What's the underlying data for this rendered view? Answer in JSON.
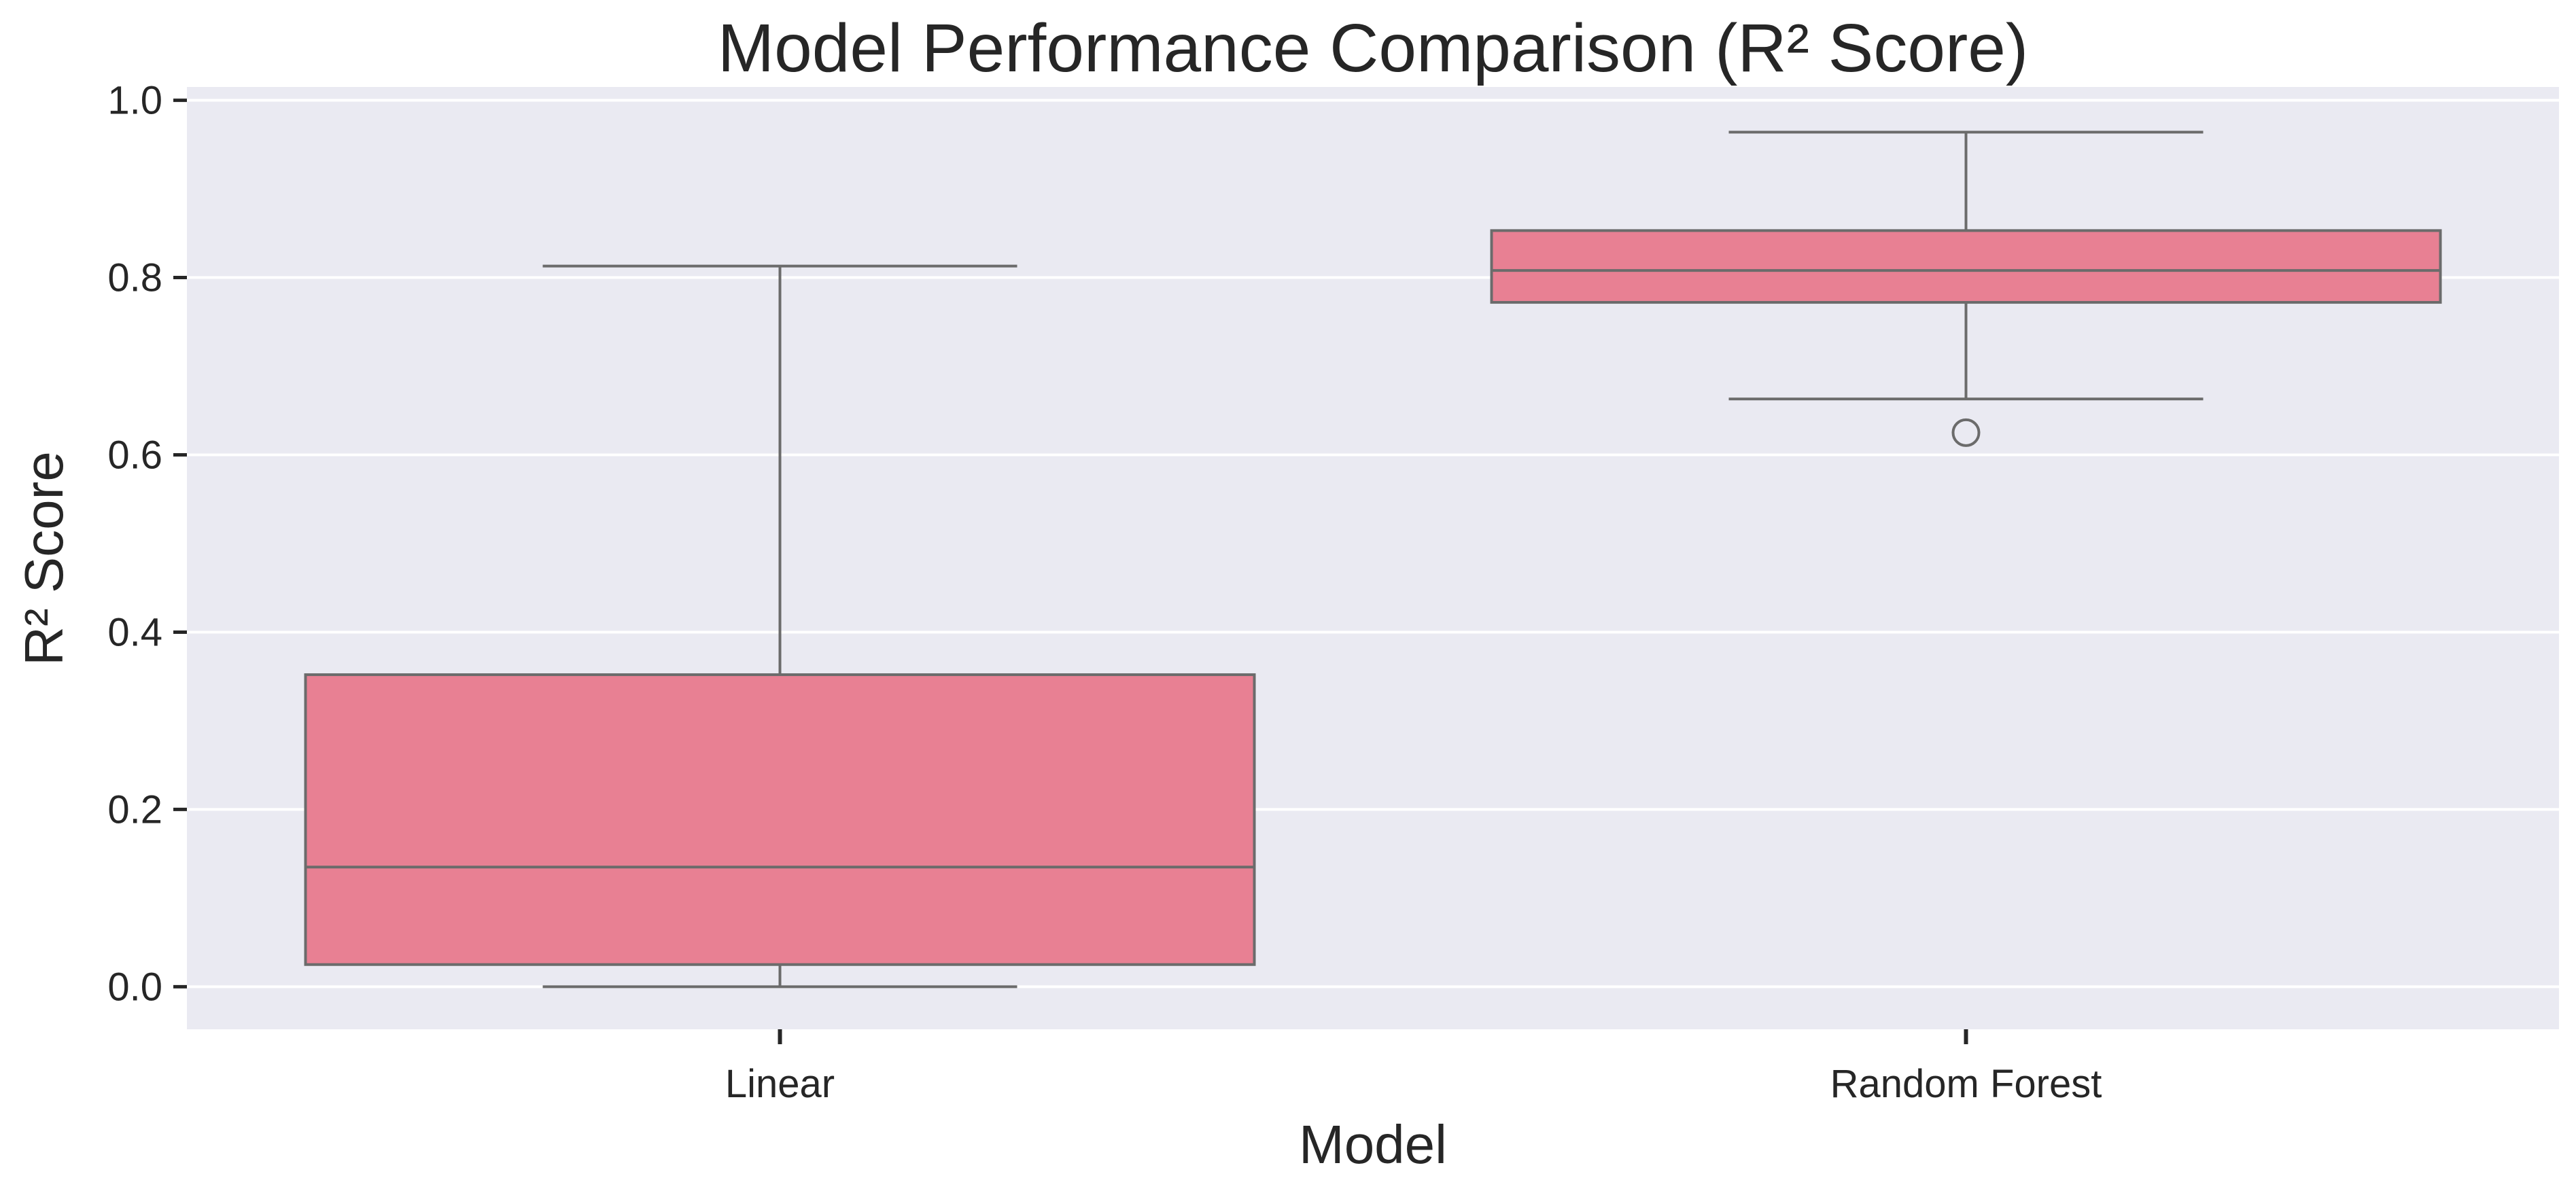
{
  "chart_data": {
    "type": "box",
    "title": "Model Performance Comparison (R² Score)",
    "xlabel": "Model",
    "ylabel": "R² Score",
    "ylim": [
      -0.048,
      1.015
    ],
    "yticks": [
      0.0,
      0.2,
      0.4,
      0.6,
      0.8,
      1.0
    ],
    "ytick_labels": [
      "0.0",
      "0.2",
      "0.4",
      "0.6",
      "0.8",
      "1.0"
    ],
    "grid": true,
    "box_color": "#e88093",
    "edge_color": "#6b6b6b",
    "background_color": "#eaeaf2",
    "categories": [
      "Linear",
      "Random Forest"
    ],
    "boxes": [
      {
        "category": "Linear",
        "whisker_low": 0.0,
        "q1": 0.025,
        "median": 0.135,
        "q3": 0.352,
        "whisker_high": 0.813,
        "outliers": []
      },
      {
        "category": "Random Forest",
        "whisker_low": 0.663,
        "q1": 0.772,
        "median": 0.808,
        "q3": 0.853,
        "whisker_high": 0.964,
        "outliers": [
          0.625
        ]
      }
    ]
  }
}
